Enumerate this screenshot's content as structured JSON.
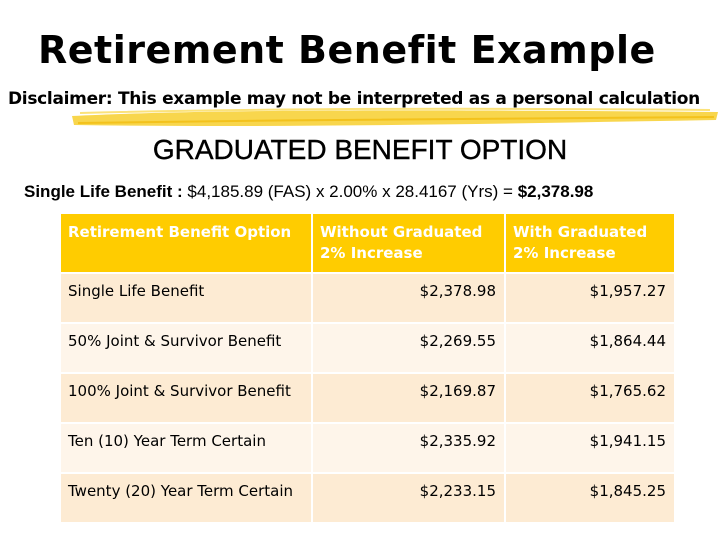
{
  "title": "Retirement Benefit Example",
  "disclaimer": "Disclaimer:  This example may not be interpreted as a personal calculation",
  "subtitle": "GRADUATED BENEFIT OPTION",
  "formula": {
    "label": "Single Life Benefit :",
    "expression": "$4,185.89 (FAS) x 2.00% x 28.4167 (Yrs) =",
    "result": "$2,378.98"
  },
  "colors": {
    "header_bg": "#ffcc00",
    "row_odd": "#fdebd3",
    "row_even": "#fef5ea",
    "highlight": "#f7d23a"
  },
  "table": {
    "headers": [
      "Retirement Benefit Option",
      "Without Graduated 2% Increase",
      "With Graduated 2% Increase"
    ],
    "rows": [
      {
        "option": "Single Life Benefit",
        "without": "$2,378.98",
        "with": "$1,957.27"
      },
      {
        "option": "50% Joint & Survivor Benefit",
        "without": "$2,269.55",
        "with": "$1,864.44"
      },
      {
        "option": "100% Joint & Survivor Benefit",
        "without": "$2,169.87",
        "with": "$1,765.62"
      },
      {
        "option": "Ten (10) Year Term Certain",
        "without": "$2,335.92",
        "with": "$1,941.15"
      },
      {
        "option": "Twenty (20) Year Term Certain",
        "without": "$2,233.15",
        "with": "$1,845.25"
      }
    ]
  }
}
